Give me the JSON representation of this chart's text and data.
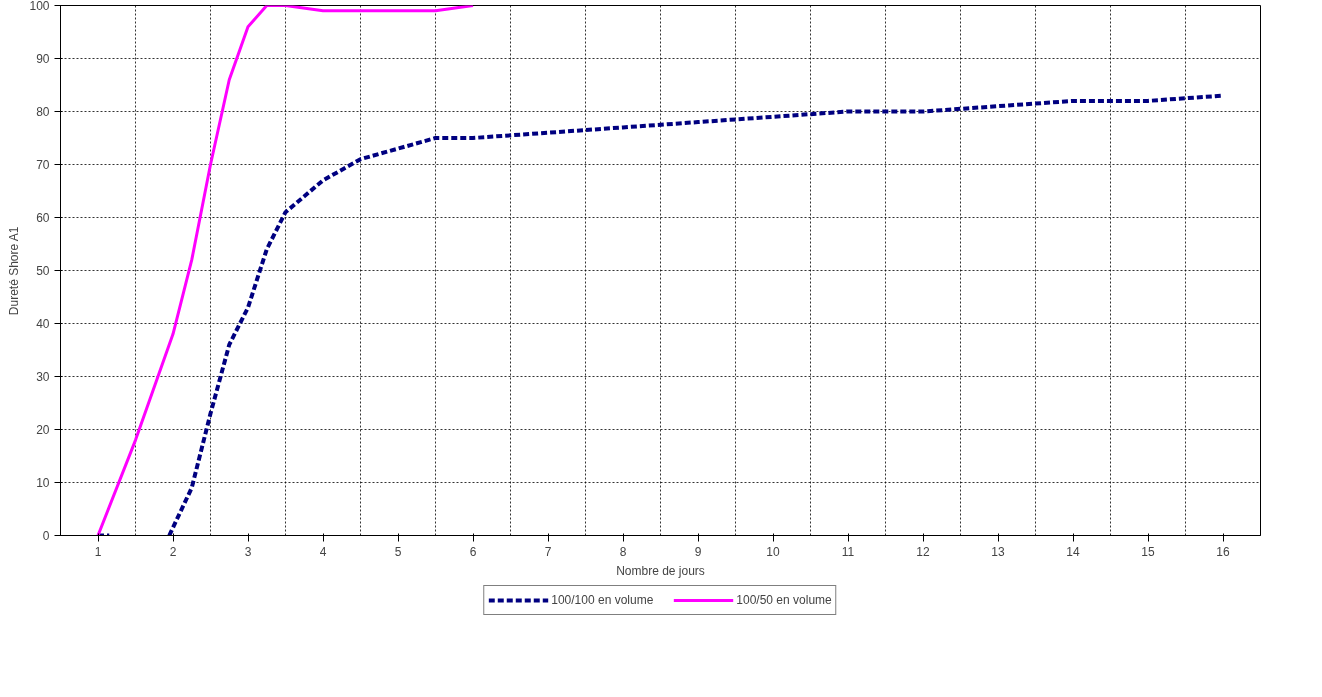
{
  "chart_data": {
    "type": "line",
    "xlabel": "Nombre de jours",
    "ylabel": "Dureté Shore A1",
    "xlim": [
      0.5,
      16.5
    ],
    "xticks": [
      1,
      2,
      3,
      4,
      5,
      6,
      7,
      8,
      9,
      10,
      11,
      12,
      13,
      14,
      15,
      16
    ],
    "ylim": [
      0,
      100
    ],
    "yticks": [
      0,
      10,
      20,
      30,
      40,
      50,
      60,
      70,
      80,
      90,
      100
    ],
    "grid": true,
    "legend": "bottom",
    "marker": "none",
    "series": [
      {
        "name": "100/100 en volume",
        "color": "#000080",
        "line_style": "dashed",
        "x": [
          1,
          1.15,
          1.5,
          1.95,
          2.25,
          2.5,
          2.75,
          3,
          3.25,
          3.5,
          4,
          4.5,
          5,
          5.5,
          6,
          7,
          8,
          9,
          10,
          11,
          12,
          13,
          14,
          15,
          16
        ],
        "values": [
          0,
          0,
          null,
          0,
          9,
          23,
          36,
          43,
          54,
          61,
          67,
          71,
          73,
          75,
          75,
          76,
          77,
          78,
          79,
          80,
          80,
          81,
          82,
          82,
          83
        ]
      },
      {
        "name": "100/50 en volume",
        "color": "#ff00ff",
        "line_style": "solid",
        "x": [
          1,
          1.5,
          2,
          2.25,
          2.5,
          2.75,
          3,
          3.25,
          3.5,
          4,
          4.5,
          5,
          5.5,
          6
        ],
        "values": [
          0,
          18,
          38,
          52,
          70,
          86,
          96,
          100,
          100,
          99,
          99,
          99,
          99,
          100
        ]
      }
    ]
  }
}
